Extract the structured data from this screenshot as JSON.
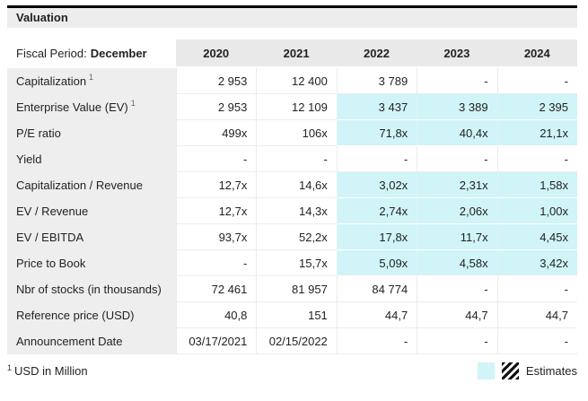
{
  "colors": {
    "estimate_bg": "#d0f4f7",
    "title_bar_bg": "#ededed",
    "header_bg": "#e9e9e9",
    "label_col_bg": "#eeeeee",
    "top_border": "#000000"
  },
  "title": "Valuation",
  "table": {
    "fiscal_period_label": "Fiscal Period:",
    "fiscal_period_value": "December",
    "years": [
      "2020",
      "2021",
      "2022",
      "2023",
      "2024"
    ],
    "rows": [
      {
        "label": "Capitalization",
        "sup": "1",
        "values": [
          "2 953",
          "12 400",
          "3 789",
          "-",
          "-"
        ],
        "estimates": [
          false,
          false,
          false,
          false,
          false
        ]
      },
      {
        "label": "Enterprise Value (EV)",
        "sup": "1",
        "values": [
          "2 953",
          "12 109",
          "3 437",
          "3 389",
          "2 395"
        ],
        "estimates": [
          false,
          false,
          true,
          true,
          true
        ]
      },
      {
        "label": "P/E ratio",
        "values": [
          "499x",
          "106x",
          "71,8x",
          "40,4x",
          "21,1x"
        ],
        "estimates": [
          false,
          false,
          true,
          true,
          true
        ]
      },
      {
        "label": "Yield",
        "values": [
          "-",
          "-",
          "-",
          "-",
          "-"
        ],
        "estimates": [
          false,
          false,
          false,
          false,
          false
        ]
      },
      {
        "label": "Capitalization / Revenue",
        "values": [
          "12,7x",
          "14,6x",
          "3,02x",
          "2,31x",
          "1,58x"
        ],
        "estimates": [
          false,
          false,
          true,
          true,
          true
        ]
      },
      {
        "label": "EV / Revenue",
        "values": [
          "12,7x",
          "14,3x",
          "2,74x",
          "2,06x",
          "1,00x"
        ],
        "estimates": [
          false,
          false,
          true,
          true,
          true
        ]
      },
      {
        "label": "EV / EBITDA",
        "values": [
          "93,7x",
          "52,2x",
          "17,8x",
          "11,7x",
          "4,45x"
        ],
        "estimates": [
          false,
          false,
          true,
          true,
          true
        ]
      },
      {
        "label": "Price to Book",
        "values": [
          "-",
          "15,7x",
          "5,09x",
          "4,58x",
          "3,42x"
        ],
        "estimates": [
          false,
          false,
          true,
          true,
          true
        ]
      },
      {
        "label": "Nbr of stocks (in thousands)",
        "values": [
          "72 461",
          "81 957",
          "84 774",
          "-",
          "-"
        ],
        "estimates": [
          false,
          false,
          false,
          false,
          false
        ]
      },
      {
        "label": "Reference price (USD)",
        "values": [
          "40,8",
          "151",
          "44,7",
          "44,7",
          "44,7"
        ],
        "estimates": [
          false,
          false,
          false,
          false,
          false
        ]
      },
      {
        "label": "Announcement Date",
        "values": [
          "03/17/2021",
          "02/15/2022",
          "-",
          "-",
          "-"
        ],
        "estimates": [
          false,
          false,
          false,
          false,
          false
        ]
      }
    ]
  },
  "footer": {
    "footnote_sup": "1",
    "footnote_text": "USD in Million",
    "legend_label": "Estimates"
  }
}
